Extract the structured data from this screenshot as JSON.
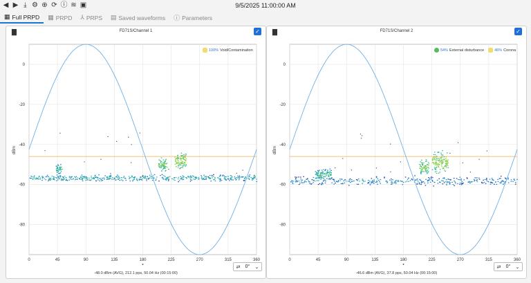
{
  "toolbar": {
    "icons": [
      "back-icon",
      "forward-icon",
      "download-icon",
      "settings-icon",
      "crosshair-icon",
      "rotate-icon",
      "info-icon",
      "layers-icon",
      "camera-icon"
    ]
  },
  "header": {
    "datetime": "9/5/2025 11:00:00 AM"
  },
  "tabs": [
    {
      "label": "Full PRPD",
      "icon": "grid-icon",
      "active": true
    },
    {
      "label": "PRPD",
      "icon": "grid-icon",
      "active": false
    },
    {
      "label": "PRPS",
      "icon": "prps-icon",
      "active": false
    },
    {
      "label": "Saved waveforms",
      "icon": "save-icon",
      "active": false
    },
    {
      "label": "Parameters",
      "icon": "info-icon",
      "active": false
    }
  ],
  "panels": [
    {
      "title": "FD71S/Channel 1",
      "y_axis_label": "dBm",
      "legend": [
        {
          "pct": "100%",
          "label": "Void/Contamination",
          "color": "#f2dc72"
        }
      ],
      "angle": "0°",
      "footer": "-48.0 dBm (AVG), 212.1 pps, 50.04 Hz (00:15:00)"
    },
    {
      "title": "FD71S/Channel 2",
      "y_axis_label": "dBm",
      "legend": [
        {
          "pct": "54%",
          "label": "External disturbance",
          "color": "#5cb85c"
        },
        {
          "pct": "46%",
          "label": "Corona",
          "color": "#f2dc72"
        }
      ],
      "angle": "0°",
      "footer": "-46.6 dBm (AVG), 37.8 pps, 50.04 Hz (00:15:00)"
    }
  ],
  "chart_data": [
    {
      "type": "scatter",
      "title": "FD71S/Channel 1",
      "xlabel": "",
      "ylabel": "dBm",
      "xlim": [
        0,
        360
      ],
      "ylim": [
        -95,
        10
      ],
      "x_ticks": [
        0,
        45,
        90,
        135,
        180,
        225,
        270,
        315,
        360
      ],
      "y_ticks": [
        0,
        -20,
        -40,
        -60,
        -80
      ],
      "grid": true,
      "reference_sine": {
        "peak_x": 90,
        "trough_x": 270,
        "color": "#6fb0e6"
      },
      "threshold_line": {
        "y": -46,
        "color": "#f0b040"
      },
      "clusters": [
        {
          "x_from": 0,
          "x_to": 360,
          "y_center": -56.5,
          "y_spread": 2.2,
          "intensity": 0.6
        },
        {
          "x_from": 42,
          "x_to": 52,
          "y_center": -52,
          "y_spread": 3,
          "intensity": 0.7
        },
        {
          "x_from": 204,
          "x_to": 218,
          "y_center": -50,
          "y_spread": 4,
          "intensity": 0.85
        },
        {
          "x_from": 230,
          "x_to": 248,
          "y_center": -48,
          "y_spread": 5,
          "intensity": 0.95
        }
      ]
    },
    {
      "type": "scatter",
      "title": "FD71S/Channel 2",
      "xlabel": "",
      "ylabel": "dBm",
      "xlim": [
        0,
        360
      ],
      "ylim": [
        -95,
        10
      ],
      "x_ticks": [
        0,
        45,
        90,
        135,
        180,
        225,
        270,
        315,
        360
      ],
      "y_ticks": [
        0,
        -20,
        -40,
        -60,
        -80
      ],
      "grid": true,
      "reference_sine": {
        "peak_x": 90,
        "trough_x": 270,
        "color": "#6fb0e6"
      },
      "threshold_line": {
        "y": -46,
        "color": "#f0b040"
      },
      "clusters": [
        {
          "x_from": 0,
          "x_to": 360,
          "y_center": -58,
          "y_spread": 3,
          "intensity": 0.45
        },
        {
          "x_from": 40,
          "x_to": 65,
          "y_center": -55,
          "y_spread": 4,
          "intensity": 0.7
        },
        {
          "x_from": 205,
          "x_to": 220,
          "y_center": -51,
          "y_spread": 5,
          "intensity": 0.85
        },
        {
          "x_from": 225,
          "x_to": 250,
          "y_center": -49,
          "y_spread": 7,
          "intensity": 0.95
        }
      ]
    }
  ]
}
